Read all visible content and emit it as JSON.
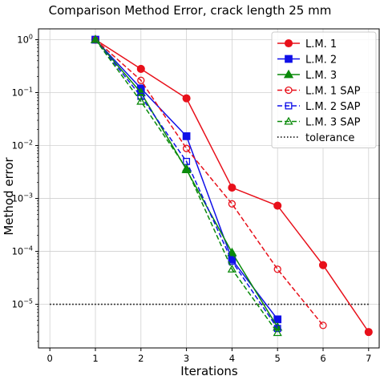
{
  "chart_data": {
    "type": "line",
    "title": "Comparison Method Error, crack length 25 mm",
    "xlabel": "Iterations",
    "ylabel": "Method error",
    "x_ticks": [
      0,
      1,
      2,
      3,
      4,
      5,
      6,
      7
    ],
    "xlim": [
      -0.25,
      7.25
    ],
    "ylim": [
      1.5e-06,
      1.6
    ],
    "yscale": "log",
    "y_ticks": [
      {
        "base": "10",
        "exp": "0",
        "value": 1
      },
      {
        "base": "10",
        "exp": "−1",
        "value": 0.1
      },
      {
        "base": "10",
        "exp": "−2",
        "value": 0.01
      },
      {
        "base": "10",
        "exp": "−3",
        "value": 0.001
      },
      {
        "base": "10",
        "exp": "−4",
        "value": 0.0001
      },
      {
        "base": "10",
        "exp": "−5",
        "value": 1e-05
      }
    ],
    "grid": true,
    "legend_position": "top-right",
    "series": [
      {
        "name": "L.M. 1",
        "color": "#e8101a",
        "marker": "circle",
        "filled": true,
        "dashed": false,
        "x": [
          1,
          2,
          3,
          4,
          5,
          6,
          7
        ],
        "y": [
          1.0,
          0.28,
          0.078,
          0.0016,
          0.00073,
          5.5e-05,
          3e-06
        ]
      },
      {
        "name": "L.M. 2",
        "color": "#1010e8",
        "marker": "square",
        "filled": true,
        "dashed": false,
        "x": [
          1,
          2,
          3,
          4,
          5
        ],
        "y": [
          1.0,
          0.12,
          0.015,
          7e-05,
          5.2e-06
        ]
      },
      {
        "name": "L.M. 3",
        "color": "#0a8a0a",
        "marker": "triangle",
        "filled": true,
        "dashed": false,
        "x": [
          1,
          2,
          3,
          4,
          5
        ],
        "y": [
          1.0,
          0.1,
          0.0035,
          9.5e-05,
          3.7e-06
        ]
      },
      {
        "name": "L.M. 1 SAP",
        "color": "#e8101a",
        "marker": "circle",
        "filled": false,
        "dashed": true,
        "x": [
          1,
          2,
          3,
          4,
          5,
          6
        ],
        "y": [
          1.0,
          0.17,
          0.0088,
          0.00079,
          4.6e-05,
          4e-06
        ]
      },
      {
        "name": "L.M. 2 SAP",
        "color": "#1010e8",
        "marker": "square",
        "filled": false,
        "dashed": true,
        "x": [
          1,
          2,
          3,
          4,
          5
        ],
        "y": [
          1.0,
          0.085,
          0.005,
          6.5e-05,
          3.5e-06
        ]
      },
      {
        "name": "L.M. 3 SAP",
        "color": "#0a8a0a",
        "marker": "triangle",
        "filled": false,
        "dashed": true,
        "x": [
          1,
          2,
          3,
          4,
          5
        ],
        "y": [
          1.0,
          0.068,
          0.0037,
          4.6e-05,
          2.9e-06
        ]
      }
    ],
    "reference_line": {
      "name": "tolerance",
      "y": 1e-05,
      "style": "dotted",
      "color": "#000000"
    }
  }
}
